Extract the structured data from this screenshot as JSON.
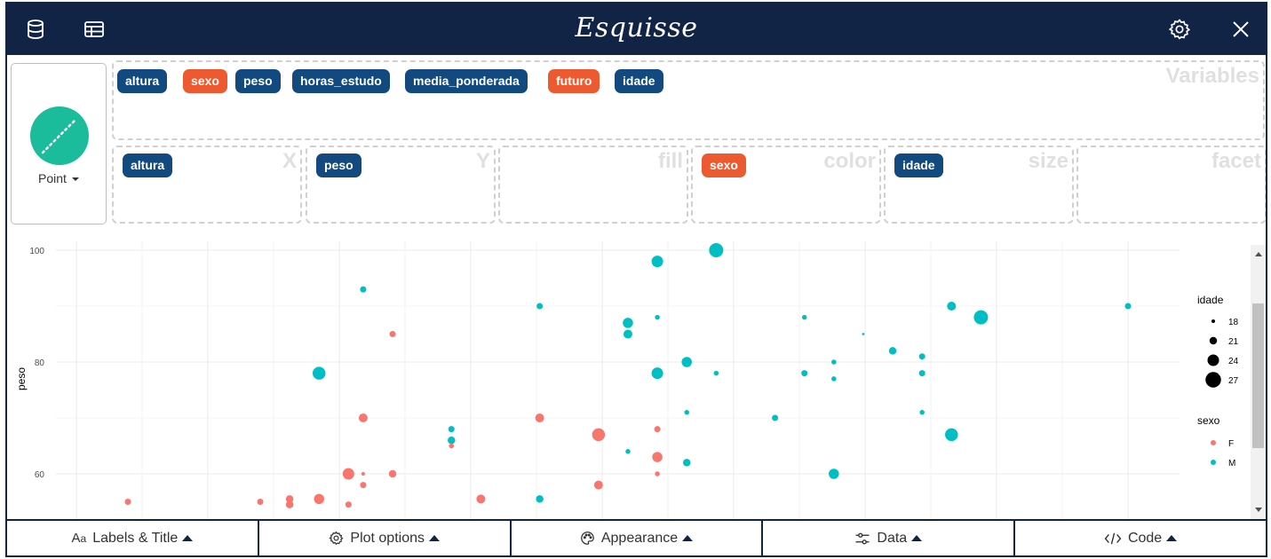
{
  "app": {
    "title": "Esquisse"
  },
  "header": {
    "left_icons": [
      "database-icon",
      "table-icon"
    ],
    "right_icons": [
      "gear-icon",
      "close-icon"
    ]
  },
  "geom": {
    "label": "Point",
    "color": "#1abc9c"
  },
  "variables": {
    "title": "Variables",
    "items": [
      {
        "label": "altura",
        "kind": "numeric"
      },
      {
        "label": "sexo",
        "kind": "categorical"
      },
      {
        "label": "peso",
        "kind": "numeric"
      },
      {
        "label": "horas_estudo",
        "kind": "numeric"
      },
      {
        "label": "media_ponderada",
        "kind": "numeric"
      },
      {
        "label": "futuro",
        "kind": "categorical"
      },
      {
        "label": "idade",
        "kind": "numeric"
      }
    ]
  },
  "zones": [
    {
      "title": "X",
      "badge": "altura",
      "kind": "numeric"
    },
    {
      "title": "Y",
      "badge": "peso",
      "kind": "numeric"
    },
    {
      "title": "fill",
      "badge": "",
      "kind": ""
    },
    {
      "title": "color",
      "badge": "sexo",
      "kind": "categorical"
    },
    {
      "title": "size",
      "badge": "idade",
      "kind": "numeric"
    },
    {
      "title": "facet",
      "badge": "",
      "kind": ""
    }
  ],
  "colors": {
    "numeric": "#124a80",
    "categorical": "#ee5a2f",
    "header": "#112446",
    "F": "#f8766d",
    "M": "#00bfc4"
  },
  "chart_data": {
    "type": "scatter",
    "ylabel": "peso",
    "yticks": [
      60,
      80,
      100
    ],
    "ylim": [
      54,
      100
    ],
    "grid": true,
    "legend_placement": "right",
    "legends": [
      {
        "title": "idade",
        "type": "size",
        "entries": [
          18,
          21,
          24,
          27
        ]
      },
      {
        "title": "sexo",
        "type": "color",
        "entries": [
          "F",
          "M"
        ]
      }
    ],
    "points": [
      {
        "x": 1.45,
        "y": 55,
        "sexo": "F",
        "idade": 20
      },
      {
        "x": 1.54,
        "y": 55,
        "sexo": "F",
        "idade": 20
      },
      {
        "x": 1.56,
        "y": 55.5,
        "sexo": "F",
        "idade": 21
      },
      {
        "x": 1.56,
        "y": 54.5,
        "sexo": "F",
        "idade": 21
      },
      {
        "x": 1.58,
        "y": 78,
        "sexo": "M",
        "idade": 25
      },
      {
        "x": 1.58,
        "y": 55.5,
        "sexo": "F",
        "idade": 23
      },
      {
        "x": 1.6,
        "y": 60,
        "sexo": "F",
        "idade": 24
      },
      {
        "x": 1.6,
        "y": 54.5,
        "sexo": "F",
        "idade": 20
      },
      {
        "x": 1.61,
        "y": 93,
        "sexo": "M",
        "idade": 20
      },
      {
        "x": 1.61,
        "y": 70,
        "sexo": "F",
        "idade": 22
      },
      {
        "x": 1.61,
        "y": 58,
        "sexo": "F",
        "idade": 20
      },
      {
        "x": 1.61,
        "y": 60,
        "sexo": "F",
        "idade": 18
      },
      {
        "x": 1.63,
        "y": 85,
        "sexo": "F",
        "idade": 20
      },
      {
        "x": 1.63,
        "y": 60,
        "sexo": "F",
        "idade": 21
      },
      {
        "x": 1.67,
        "y": 68,
        "sexo": "M",
        "idade": 20
      },
      {
        "x": 1.67,
        "y": 66,
        "sexo": "M",
        "idade": 21
      },
      {
        "x": 1.67,
        "y": 65,
        "sexo": "F",
        "idade": 19
      },
      {
        "x": 1.69,
        "y": 55.5,
        "sexo": "F",
        "idade": 22
      },
      {
        "x": 1.73,
        "y": 90,
        "sexo": "M",
        "idade": 20
      },
      {
        "x": 1.73,
        "y": 70,
        "sexo": "F",
        "idade": 22
      },
      {
        "x": 1.73,
        "y": 55.5,
        "sexo": "M",
        "idade": 21
      },
      {
        "x": 1.77,
        "y": 67,
        "sexo": "F",
        "idade": 25
      },
      {
        "x": 1.77,
        "y": 58,
        "sexo": "F",
        "idade": 22
      },
      {
        "x": 1.79,
        "y": 87,
        "sexo": "M",
        "idade": 23
      },
      {
        "x": 1.79,
        "y": 85,
        "sexo": "M",
        "idade": 22
      },
      {
        "x": 1.79,
        "y": 64,
        "sexo": "M",
        "idade": 19
      },
      {
        "x": 1.81,
        "y": 98,
        "sexo": "M",
        "idade": 24
      },
      {
        "x": 1.81,
        "y": 88,
        "sexo": "M",
        "idade": 19
      },
      {
        "x": 1.81,
        "y": 78,
        "sexo": "M",
        "idade": 24
      },
      {
        "x": 1.81,
        "y": 68,
        "sexo": "F",
        "idade": 20
      },
      {
        "x": 1.81,
        "y": 63,
        "sexo": "F",
        "idade": 23
      },
      {
        "x": 1.81,
        "y": 60,
        "sexo": "F",
        "idade": 19
      },
      {
        "x": 1.83,
        "y": 80,
        "sexo": "M",
        "idade": 23
      },
      {
        "x": 1.83,
        "y": 71,
        "sexo": "M",
        "idade": 19
      },
      {
        "x": 1.83,
        "y": 62,
        "sexo": "M",
        "idade": 21
      },
      {
        "x": 1.85,
        "y": 100,
        "sexo": "M",
        "idade": 26
      },
      {
        "x": 1.85,
        "y": 78,
        "sexo": "M",
        "idade": 19
      },
      {
        "x": 1.89,
        "y": 70,
        "sexo": "M",
        "idade": 20
      },
      {
        "x": 1.91,
        "y": 88,
        "sexo": "M",
        "idade": 19
      },
      {
        "x": 1.91,
        "y": 78,
        "sexo": "M",
        "idade": 20
      },
      {
        "x": 1.93,
        "y": 80,
        "sexo": "M",
        "idade": 19
      },
      {
        "x": 1.93,
        "y": 77,
        "sexo": "M",
        "idade": 19
      },
      {
        "x": 1.93,
        "y": 60,
        "sexo": "M",
        "idade": 23
      },
      {
        "x": 1.95,
        "y": 85,
        "sexo": "M",
        "idade": 17
      },
      {
        "x": 1.97,
        "y": 82,
        "sexo": "M",
        "idade": 21
      },
      {
        "x": 1.99,
        "y": 81,
        "sexo": "M",
        "idade": 20
      },
      {
        "x": 1.99,
        "y": 78,
        "sexo": "M",
        "idade": 20
      },
      {
        "x": 1.99,
        "y": 71,
        "sexo": "M",
        "idade": 19
      },
      {
        "x": 2.01,
        "y": 90,
        "sexo": "M",
        "idade": 22
      },
      {
        "x": 2.01,
        "y": 67,
        "sexo": "M",
        "idade": 25
      },
      {
        "x": 2.03,
        "y": 88,
        "sexo": "M",
        "idade": 26
      },
      {
        "x": 2.13,
        "y": 90,
        "sexo": "M",
        "idade": 20
      }
    ]
  },
  "tabs": [
    {
      "label": "Labels & Title",
      "icon": "font-icon"
    },
    {
      "label": "Plot options",
      "icon": "gear-icon"
    },
    {
      "label": "Appearance",
      "icon": "palette-icon"
    },
    {
      "label": "Data",
      "icon": "sliders-icon"
    },
    {
      "label": "Code",
      "icon": "code-icon"
    }
  ]
}
